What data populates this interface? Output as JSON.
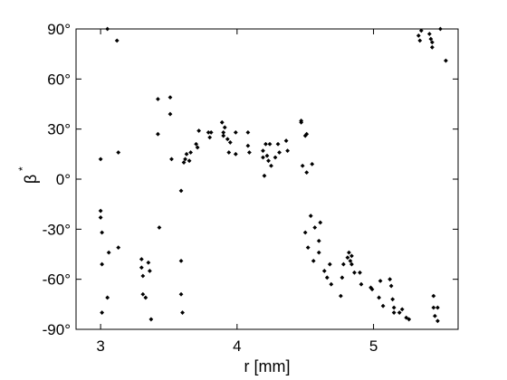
{
  "chart_data": {
    "type": "scatter",
    "title": "",
    "xlabel": "r [mm]",
    "ylabel": "β",
    "ylabel_superscript": "*",
    "xlim": [
      2.82,
      5.62
    ],
    "ylim": [
      -90,
      90
    ],
    "xticks": [
      3,
      4,
      5
    ],
    "xtick_labels": [
      "3",
      "4",
      "5"
    ],
    "yticks": [
      -90,
      -60,
      -30,
      0,
      30,
      60,
      90
    ],
    "ytick_labels": [
      "-90°",
      "-60°",
      "-30°",
      "0°",
      "30°",
      "60°",
      "90°"
    ],
    "grid": false,
    "legend": "none",
    "marker_color": "#000000",
    "series": [
      {
        "points": [
          [
            3.0,
            12
          ],
          [
            3.0,
            -19
          ],
          [
            3.0,
            -23
          ],
          [
            3.01,
            -32
          ],
          [
            3.01,
            -51
          ],
          [
            3.01,
            -80
          ],
          [
            3.05,
            90
          ],
          [
            3.05,
            -71
          ],
          [
            3.06,
            -44
          ],
          [
            3.12,
            83
          ],
          [
            3.13,
            16
          ],
          [
            3.13,
            -41
          ],
          [
            3.3,
            -48
          ],
          [
            3.3,
            -53
          ],
          [
            3.31,
            -58
          ],
          [
            3.31,
            -69
          ],
          [
            3.33,
            -71
          ],
          [
            3.35,
            -50
          ],
          [
            3.36,
            -55
          ],
          [
            3.37,
            -84
          ],
          [
            3.42,
            48
          ],
          [
            3.42,
            27
          ],
          [
            3.43,
            -29
          ],
          [
            3.51,
            49
          ],
          [
            3.51,
            39
          ],
          [
            3.52,
            12
          ],
          [
            3.59,
            -7
          ],
          [
            3.59,
            -49
          ],
          [
            3.59,
            -69
          ],
          [
            3.6,
            -80
          ],
          [
            3.61,
            10
          ],
          [
            3.62,
            12
          ],
          [
            3.63,
            15
          ],
          [
            3.65,
            11
          ],
          [
            3.66,
            16
          ],
          [
            3.7,
            21
          ],
          [
            3.71,
            19
          ],
          [
            3.72,
            29
          ],
          [
            3.79,
            28
          ],
          [
            3.8,
            25
          ],
          [
            3.81,
            28
          ],
          [
            3.89,
            34
          ],
          [
            3.9,
            28
          ],
          [
            3.9,
            26
          ],
          [
            3.91,
            31
          ],
          [
            3.93,
            24
          ],
          [
            3.94,
            16
          ],
          [
            3.95,
            22
          ],
          [
            3.99,
            28
          ],
          [
            3.99,
            15
          ],
          [
            4.08,
            28
          ],
          [
            4.08,
            20
          ],
          [
            4.09,
            16
          ],
          [
            4.19,
            17
          ],
          [
            4.19,
            13
          ],
          [
            4.2,
            2
          ],
          [
            4.21,
            21
          ],
          [
            4.22,
            14
          ],
          [
            4.23,
            11
          ],
          [
            4.24,
            21
          ],
          [
            4.25,
            8
          ],
          [
            4.28,
            13
          ],
          [
            4.3,
            21
          ],
          [
            4.31,
            16
          ],
          [
            4.36,
            23
          ],
          [
            4.37,
            17
          ],
          [
            4.47,
            35
          ],
          [
            4.47,
            34
          ],
          [
            4.48,
            8
          ],
          [
            4.5,
            26
          ],
          [
            4.51,
            27
          ],
          [
            4.5,
            -32
          ],
          [
            4.51,
            4
          ],
          [
            4.52,
            -41
          ],
          [
            4.54,
            -22
          ],
          [
            4.55,
            9
          ],
          [
            4.56,
            -49
          ],
          [
            4.57,
            -29
          ],
          [
            4.6,
            -37
          ],
          [
            4.6,
            -44
          ],
          [
            4.61,
            -26
          ],
          [
            4.64,
            -55
          ],
          [
            4.66,
            -59
          ],
          [
            4.68,
            -51
          ],
          [
            4.69,
            -63
          ],
          [
            4.76,
            -70
          ],
          [
            4.77,
            -59
          ],
          [
            4.78,
            -51
          ],
          [
            4.81,
            -47
          ],
          [
            4.82,
            -44
          ],
          [
            4.83,
            -49
          ],
          [
            4.84,
            -46
          ],
          [
            4.84,
            -51
          ],
          [
            4.86,
            -56
          ],
          [
            4.9,
            -56
          ],
          [
            4.91,
            -63
          ],
          [
            4.98,
            -65
          ],
          [
            4.99,
            -66
          ],
          [
            5.04,
            -71
          ],
          [
            5.05,
            -61
          ],
          [
            5.07,
            -76
          ],
          [
            5.12,
            -60
          ],
          [
            5.13,
            -64
          ],
          [
            5.14,
            -72
          ],
          [
            5.15,
            -80
          ],
          [
            5.15,
            -77
          ],
          [
            5.19,
            -80
          ],
          [
            5.21,
            -78
          ],
          [
            5.24,
            -83
          ],
          [
            5.26,
            -84
          ],
          [
            5.33,
            86
          ],
          [
            5.34,
            83
          ],
          [
            5.35,
            89
          ],
          [
            5.41,
            87
          ],
          [
            5.42,
            84
          ],
          [
            5.43,
            82
          ],
          [
            5.43,
            79
          ],
          [
            5.44,
            -70
          ],
          [
            5.44,
            -77
          ],
          [
            5.45,
            -82
          ],
          [
            5.47,
            -77
          ],
          [
            5.47,
            -85
          ],
          [
            5.49,
            90
          ],
          [
            5.53,
            71
          ]
        ]
      }
    ]
  }
}
